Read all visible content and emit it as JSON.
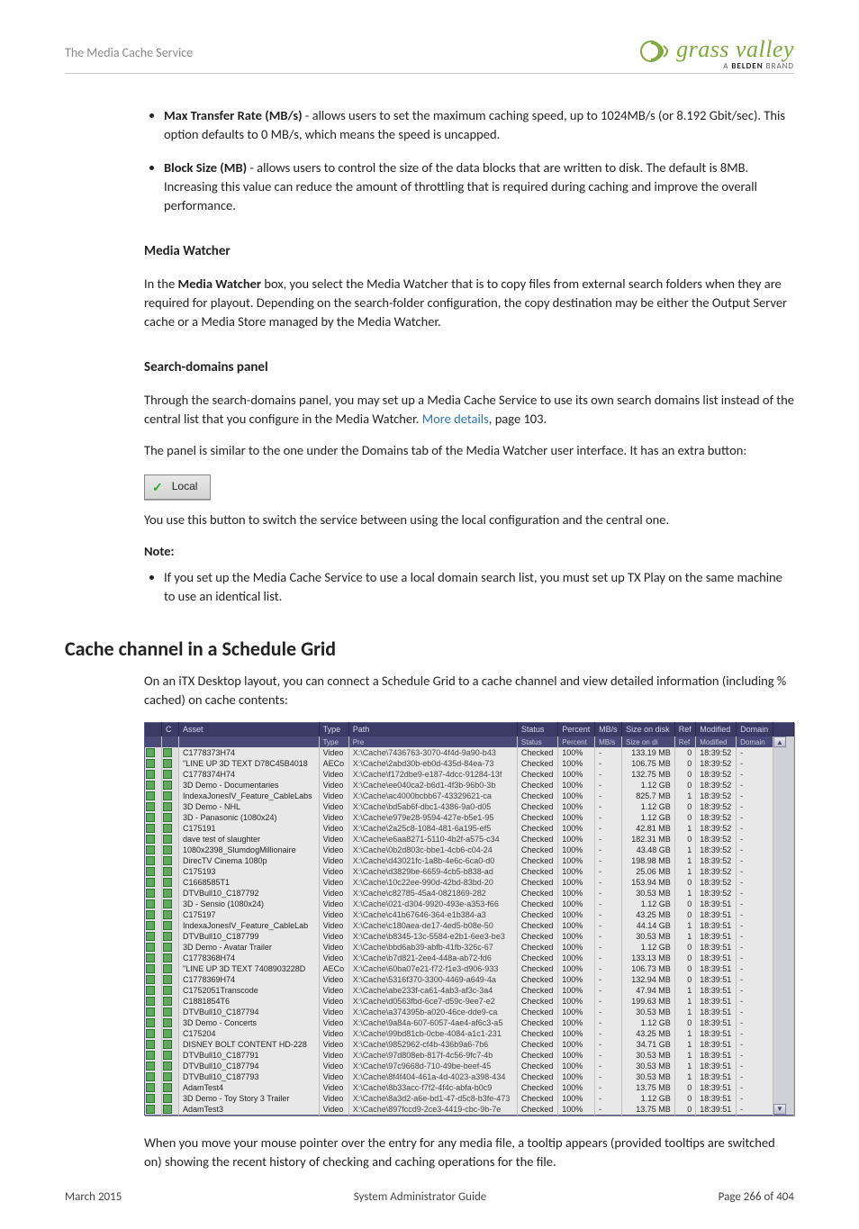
{
  "header": {
    "doc_title": "The Media Cache Service",
    "logo_main": "grass valley",
    "logo_sub_prefix": "A ",
    "logo_sub_bold": "BELDEN",
    "logo_sub_suffix": " BRAND"
  },
  "options": [
    {
      "label": "Max Transfer Rate (MB/s)",
      "text": " - allows users to set the maximum caching speed, up to 1024MB/s (or 8.192 Gbit/sec). This option defaults to 0 MB/s, which means the speed is uncapped."
    },
    {
      "label": "Block Size (MB)",
      "text": " - allows users to control the size of the data blocks that are written to disk. The default is 8MB. Increasing this value can reduce the amount of throttling that is required during caching and improve the overall performance."
    }
  ],
  "media_watcher": {
    "heading": "Media Watcher",
    "para_pre": "In the ",
    "para_bold": "Media Watcher",
    "para_post": " box, you select the Media Watcher that is to copy files from external search folders when they are required for playout. Depending on the search-folder configuration, the copy destination may be either the Output Server cache or a Media Store managed by the Media Watcher."
  },
  "search_domains": {
    "heading": "Search-domains panel",
    "para1_pre": "Through the search-domains panel, you may set up a Media Cache Service to use its own search domains list instead of the central list that you configure in the Media Watcher. ",
    "link_text": "More details",
    "para1_post": ", page 103.",
    "para2": "The panel is similar to the one under the Domains tab of the Media Watcher user interface. It has an extra button:",
    "local_label": "Local",
    "para3": "You use this button to switch the service between using the local configuration and the central one.",
    "note_label": "Note:",
    "note_item": "If you set up the Media Cache Service to use a local domain search list, you must set up TX Play on the same machine to use an identical list."
  },
  "cache_section": {
    "heading": "Cache channel in a Schedule Grid",
    "intro": "On an iTX Desktop layout, you can connect a Schedule Grid to a cache channel and view detailed information (including % cached) on cache contents:",
    "after": "When you move your mouse pointer over the entry for any media file, a tooltip appears (provided tooltips are switched on) showing the recent history of checking and caching operations for the file."
  },
  "grid": {
    "columns": [
      "",
      "C",
      "Asset",
      "Type",
      "Path",
      "Status",
      "Percent",
      "MB/s",
      "Size on disk",
      "Ref",
      "Modified",
      "Domain",
      ""
    ],
    "sub_columns": [
      "",
      "",
      "",
      "Type",
      "Pre",
      "Status",
      "Percent",
      "MB/s",
      "Size on di",
      "Ref",
      "Modified",
      "Domain",
      ""
    ],
    "rows": [
      {
        "asset": "C1778373H74",
        "type": "Video",
        "path": "X:\\Cache\\7436763-3070-4f4d-9a90-b43",
        "status": "Checked",
        "pct": "100%",
        "mbs": "-",
        "size": "133.19 MB",
        "ref": "0",
        "mod": "18:39:52",
        "dom": "-"
      },
      {
        "asset": "\"LINE UP 3D TEXT D78C45B4018",
        "type": "AECo",
        "path": "X:\\Cache\\2abd30b-eb0d-435d-84ea-73",
        "status": "Checked",
        "pct": "100%",
        "mbs": "-",
        "size": "106.75 MB",
        "ref": "0",
        "mod": "18:39:52",
        "dom": "-"
      },
      {
        "asset": "C1778374H74",
        "type": "Video",
        "path": "X:\\Cache\\f172dbe9-e187-4dcc-91284-13f",
        "status": "Checked",
        "pct": "100%",
        "mbs": "-",
        "size": "132.75 MB",
        "ref": "0",
        "mod": "18:39:52",
        "dom": "-"
      },
      {
        "asset": "3D Demo - Documentaries",
        "type": "Video",
        "path": "X:\\Cache\\ee040ca2-b6d1-4f3b-96b0-3b",
        "status": "Checked",
        "pct": "100%",
        "mbs": "-",
        "size": "1.12 GB",
        "ref": "0",
        "mod": "18:39:52",
        "dom": "-"
      },
      {
        "asset": "IndexaJonesIV_Feature_CableLabs",
        "type": "Video",
        "path": "X:\\Cache\\ac4000bcbb67-43329621-ca",
        "status": "Checked",
        "pct": "100%",
        "mbs": "-",
        "size": "825.7 MB",
        "ref": "1",
        "mod": "18:39:52",
        "dom": "-"
      },
      {
        "asset": "3D Demo - NHL",
        "type": "Video",
        "path": "X:\\Cache\\bd5ab6f-dbc1-4386-9a0-d05",
        "status": "Checked",
        "pct": "100%",
        "mbs": "-",
        "size": "1.12 GB",
        "ref": "0",
        "mod": "18:39:52",
        "dom": "-"
      },
      {
        "asset": "3D - Panasonic (1080x24)",
        "type": "Video",
        "path": "X:\\Cache\\e979e28-9594-427e-b5e1-95",
        "status": "Checked",
        "pct": "100%",
        "mbs": "-",
        "size": "1.12 GB",
        "ref": "0",
        "mod": "18:39:52",
        "dom": "-"
      },
      {
        "asset": "C175191",
        "type": "Video",
        "path": "X:\\Cache\\2a25c8-1084-481-6a195-ef5",
        "status": "Checked",
        "pct": "100%",
        "mbs": "-",
        "size": "42.81 MB",
        "ref": "1",
        "mod": "18:39:52",
        "dom": "-"
      },
      {
        "asset": "dave test of slaughter",
        "type": "Video",
        "path": "X:\\Cache\\e6aa8271-5110-4b2f-a575-c34",
        "status": "Checked",
        "pct": "100%",
        "mbs": "-",
        "size": "182.31 MB",
        "ref": "0",
        "mod": "18:39:52",
        "dom": "-"
      },
      {
        "asset": "1080x2398_SlumdogMillionaire",
        "type": "Video",
        "path": "X:\\Cache\\0b2d803c-bbe1-4cb6-c04-24",
        "status": "Checked",
        "pct": "100%",
        "mbs": "-",
        "size": "43.48 GB",
        "ref": "1",
        "mod": "18:39:52",
        "dom": "-"
      },
      {
        "asset": "DirecTV Cinema 1080p",
        "type": "Video",
        "path": "X:\\Cache\\d43021fc-1a8b-4e6c-6ca0-d0",
        "status": "Checked",
        "pct": "100%",
        "mbs": "-",
        "size": "198.98 MB",
        "ref": "1",
        "mod": "18:39:52",
        "dom": "-"
      },
      {
        "asset": "C175193",
        "type": "Video",
        "path": "X:\\Cache\\d3829be-6659-4cb5-b838-ad",
        "status": "Checked",
        "pct": "100%",
        "mbs": "-",
        "size": "25.06 MB",
        "ref": "1",
        "mod": "18:39:52",
        "dom": "-"
      },
      {
        "asset": "C1668585T1",
        "type": "Video",
        "path": "X:\\Cache\\10c22ee-990d-42bd-83bd-20",
        "status": "Checked",
        "pct": "100%",
        "mbs": "-",
        "size": "153.94 MB",
        "ref": "0",
        "mod": "18:39:52",
        "dom": "-"
      },
      {
        "asset": "DTVBull10_C187792",
        "type": "Video",
        "path": "X:\\Cache\\c82785-45a4-0821869-282",
        "status": "Checked",
        "pct": "100%",
        "mbs": "-",
        "size": "30.53 MB",
        "ref": "1",
        "mod": "18:39:52",
        "dom": "-"
      },
      {
        "asset": "3D - Sensio (1080x24)",
        "type": "Video",
        "path": "X:\\Cache\\021-d304-9920-493e-a353-f66",
        "status": "Checked",
        "pct": "100%",
        "mbs": "-",
        "size": "1.12 GB",
        "ref": "0",
        "mod": "18:39:51",
        "dom": "-"
      },
      {
        "asset": "C175197",
        "type": "Video",
        "path": "X:\\Cache\\c41b67646-364-e1b384-a3",
        "status": "Checked",
        "pct": "100%",
        "mbs": "-",
        "size": "43.25 MB",
        "ref": "0",
        "mod": "18:39:51",
        "dom": "-"
      },
      {
        "asset": "IndexaJonesIV_Feature_CableLab",
        "type": "Video",
        "path": "X:\\Cache\\c180aea-de17-4ed5-b08e-50",
        "status": "Checked",
        "pct": "100%",
        "mbs": "-",
        "size": "44.14 GB",
        "ref": "1",
        "mod": "18:39:51",
        "dom": "-"
      },
      {
        "asset": "DTVBull10_C187799",
        "type": "Video",
        "path": "X:\\Cache\\b8345-13c-5584-e2b1-6ee3-be3",
        "status": "Checked",
        "pct": "100%",
        "mbs": "-",
        "size": "30.53 MB",
        "ref": "1",
        "mod": "18:39:51",
        "dom": "-"
      },
      {
        "asset": "3D Demo - Avatar Trailer",
        "type": "Video",
        "path": "X:\\Cache\\bbd6ab39-abfb-41fb-326c-67",
        "status": "Checked",
        "pct": "100%",
        "mbs": "-",
        "size": "1.12 GB",
        "ref": "0",
        "mod": "18:39:51",
        "dom": "-"
      },
      {
        "asset": "C1778368H74",
        "type": "Video",
        "path": "X:\\Cache\\b7d821-2ee4-448a-ab72-fd6",
        "status": "Checked",
        "pct": "100%",
        "mbs": "-",
        "size": "133.13 MB",
        "ref": "0",
        "mod": "18:39:51",
        "dom": "-"
      },
      {
        "asset": "\"LINE UP 3D TEXT 7408903228D",
        "type": "AECo",
        "path": "X:\\Cache\\60ba07e21-f72-f1e3-d906-933",
        "status": "Checked",
        "pct": "100%",
        "mbs": "-",
        "size": "106.73 MB",
        "ref": "0",
        "mod": "18:39:51",
        "dom": "-"
      },
      {
        "asset": "C1778369H74",
        "type": "Video",
        "path": "X:\\Cache\\5316f370-3300-4469-a649-4a",
        "status": "Checked",
        "pct": "100%",
        "mbs": "-",
        "size": "132.94 MB",
        "ref": "0",
        "mod": "18:39:51",
        "dom": "-"
      },
      {
        "asset": "C1752051Transcode",
        "type": "Video",
        "path": "X:\\Cache\\abe233f-ca61-4ab3-af3c-3a4",
        "status": "Checked",
        "pct": "100%",
        "mbs": "-",
        "size": "47.94 MB",
        "ref": "1",
        "mod": "18:39:51",
        "dom": "-"
      },
      {
        "asset": "C1881854T6",
        "type": "Video",
        "path": "X:\\Cache\\d0563fbd-6ce7-d59c-9ee7-e2",
        "status": "Checked",
        "pct": "100%",
        "mbs": "-",
        "size": "199.63 MB",
        "ref": "1",
        "mod": "18:39:51",
        "dom": "-"
      },
      {
        "asset": "DTVBull10_C187794",
        "type": "Video",
        "path": "X:\\Cache\\a374395b-a020-46ce-dde9-ca",
        "status": "Checked",
        "pct": "100%",
        "mbs": "-",
        "size": "30.53 MB",
        "ref": "1",
        "mod": "18:39:51",
        "dom": "-"
      },
      {
        "asset": "3D Demo - Concerts",
        "type": "Video",
        "path": "X:\\Cache\\9a84a-607-6057-4ae4-af6c3-a5",
        "status": "Checked",
        "pct": "100%",
        "mbs": "-",
        "size": "1.12 GB",
        "ref": "0",
        "mod": "18:39:51",
        "dom": "-"
      },
      {
        "asset": "C175204",
        "type": "Video",
        "path": "X:\\Cache\\99bd81cb-0cbe-4084-a1c1-231",
        "status": "Checked",
        "pct": "100%",
        "mbs": "-",
        "size": "43.25 MB",
        "ref": "1",
        "mod": "18:39:51",
        "dom": "-"
      },
      {
        "asset": "DISNEY BOLT CONTENT HD-228",
        "type": "Video",
        "path": "X:\\Cache\\9852962-cf4b-436b9a6-7b6",
        "status": "Checked",
        "pct": "100%",
        "mbs": "-",
        "size": "34.71 GB",
        "ref": "1",
        "mod": "18:39:51",
        "dom": "-"
      },
      {
        "asset": "DTVBull10_C187791",
        "type": "Video",
        "path": "X:\\Cache\\97d808eb-817f-4c56-9fc7-4b",
        "status": "Checked",
        "pct": "100%",
        "mbs": "-",
        "size": "30.53 MB",
        "ref": "1",
        "mod": "18:39:51",
        "dom": "-"
      },
      {
        "asset": "DTVBull10_C187794",
        "type": "Video",
        "path": "X:\\Cache\\97c9668d-710-49be-beef-45",
        "status": "Checked",
        "pct": "100%",
        "mbs": "-",
        "size": "30.53 MB",
        "ref": "1",
        "mod": "18:39:51",
        "dom": "-"
      },
      {
        "asset": "DTVBull10_C187793",
        "type": "Video",
        "path": "X:\\Cache\\8f4f404-461a-4d-4023-a398-434",
        "status": "Checked",
        "pct": "100%",
        "mbs": "-",
        "size": "30.53 MB",
        "ref": "1",
        "mod": "18:39:51",
        "dom": "-"
      },
      {
        "asset": "AdamTest4",
        "type": "Video",
        "path": "X:\\Cache\\8b33acc-f7f2-4f4c-abfa-b0c9",
        "status": "Checked",
        "pct": "100%",
        "mbs": "-",
        "size": "13.75 MB",
        "ref": "0",
        "mod": "18:39:51",
        "dom": "-"
      },
      {
        "asset": "3D Demo - Toy Story 3 Trailer",
        "type": "Video",
        "path": "X:\\Cache\\8a3d2-a6e-bd1-47-d5c8-b3fe-473",
        "status": "Checked",
        "pct": "100%",
        "mbs": "-",
        "size": "1.12 GB",
        "ref": "0",
        "mod": "18:39:51",
        "dom": "-"
      },
      {
        "asset": "AdamTest3",
        "type": "Video",
        "path": "X:\\Cache\\897fccd9-2ce3-4419-cbc-9b-7e",
        "status": "Checked",
        "pct": "100%",
        "mbs": "-",
        "size": "13.75 MB",
        "ref": "0",
        "mod": "18:39:51",
        "dom": "-"
      }
    ]
  },
  "footer": {
    "left": "March 2015",
    "center": "System Administrator Guide",
    "right": "Page 266 of 404"
  }
}
